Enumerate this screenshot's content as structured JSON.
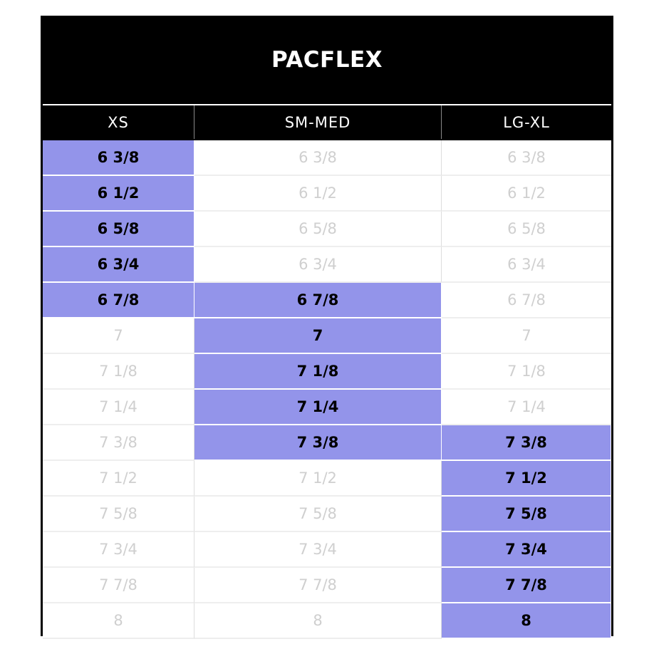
{
  "title": "PACFLEX",
  "table": {
    "headers": [
      "XS",
      "SM-MED",
      "LG-XL"
    ],
    "rows": [
      [
        "6 3/8",
        "6 3/8",
        "6 3/8"
      ],
      [
        "6 1/2",
        "6 1/2",
        "6 1/2"
      ],
      [
        "6 5/8",
        "6 5/8",
        "6 5/8"
      ],
      [
        "6 3/4",
        "6 3/4",
        "6 3/4"
      ],
      [
        "6 7/8",
        "6 7/8",
        "6 7/8"
      ],
      [
        "7",
        "7",
        "7"
      ],
      [
        "7 1/8",
        "7 1/8",
        "7 1/8"
      ],
      [
        "7 1/4",
        "7 1/4",
        "7 1/4"
      ],
      [
        "7 3/8",
        "7 3/8",
        "7 3/8"
      ],
      [
        "7 1/2",
        "7 1/2",
        "7 1/2"
      ],
      [
        "7 5/8",
        "7 5/8",
        "7 5/8"
      ],
      [
        "7 3/4",
        "7 3/4",
        "7 3/4"
      ],
      [
        "7 7/8",
        "7 7/8",
        "7 7/8"
      ],
      [
        "8",
        "8",
        "8"
      ]
    ],
    "highlight": [
      [
        true,
        false,
        false
      ],
      [
        true,
        false,
        false
      ],
      [
        true,
        false,
        false
      ],
      [
        true,
        false,
        false
      ],
      [
        true,
        true,
        false
      ],
      [
        false,
        true,
        false
      ],
      [
        false,
        true,
        false
      ],
      [
        false,
        true,
        false
      ],
      [
        false,
        true,
        true
      ],
      [
        false,
        false,
        true
      ],
      [
        false,
        false,
        true
      ],
      [
        false,
        false,
        true
      ],
      [
        false,
        false,
        true
      ],
      [
        false,
        false,
        true
      ]
    ],
    "highlight_color": "#9394ea"
  }
}
